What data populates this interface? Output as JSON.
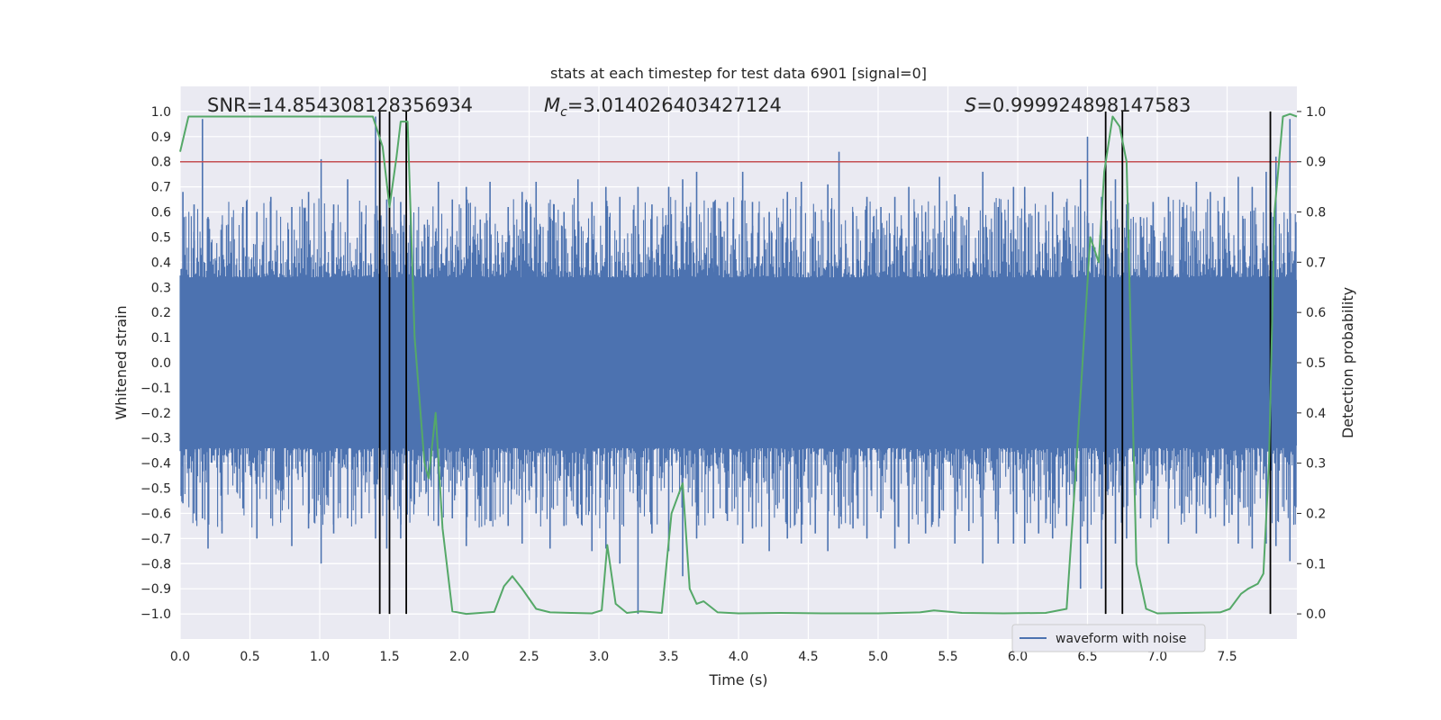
{
  "chart_data": {
    "type": "line",
    "title": "stats at each timestep for test data 6901 [signal=0]",
    "xlabel": "Time (s)",
    "ylabel": "Whitened strain",
    "y2label": "Detection probability",
    "xlim": [
      0.0,
      8.0
    ],
    "ylim": [
      -1.1,
      1.1
    ],
    "y2lim": [
      -0.05,
      1.05
    ],
    "xticks": [
      0.0,
      0.5,
      1.0,
      1.5,
      2.0,
      2.5,
      3.0,
      3.5,
      4.0,
      4.5,
      5.0,
      5.5,
      6.0,
      6.5,
      7.0,
      7.5
    ],
    "xtick_labels": [
      "0.0",
      "0.5",
      "1.0",
      "1.5",
      "2.0",
      "2.5",
      "3.0",
      "3.5",
      "4.0",
      "4.5",
      "5.0",
      "5.5",
      "6.0",
      "6.5",
      "7.0",
      "7.5"
    ],
    "yticks": [
      1.0,
      0.9,
      0.8,
      0.7,
      0.6,
      0.5,
      0.4,
      0.3,
      0.2,
      0.1,
      0.0,
      -0.1,
      -0.2,
      -0.3,
      -0.4,
      -0.5,
      -0.6,
      -0.7,
      -0.8,
      -0.9,
      -1.0
    ],
    "ytick_labels": [
      "1.0",
      "0.9",
      "0.8",
      "0.7",
      "0.6",
      "0.5",
      "0.4",
      "0.3",
      "0.2",
      "0.1",
      "0.0",
      "−0.1",
      "−0.2",
      "−0.3",
      "−0.4",
      "−0.5",
      "−0.6",
      "−0.7",
      "−0.8",
      "−0.9",
      "−1.0"
    ],
    "y2ticks": [
      1.0,
      0.9,
      0.8,
      0.7,
      0.6,
      0.5,
      0.4,
      0.3,
      0.2,
      0.1,
      0.0
    ],
    "y2tick_labels": [
      "1.0",
      "0.9",
      "0.8",
      "0.7",
      "0.6",
      "0.5",
      "0.4",
      "0.3",
      "0.2",
      "0.1",
      "0.0"
    ],
    "annotations": {
      "snr": "SNR=14.854308128356934",
      "mc_symbol": "M",
      "mc_sub": "c",
      "mc_value": "=3.014026403427124",
      "s_symbol": "S",
      "s_value": "=0.999924898147583"
    },
    "legend": {
      "label": "waveform with noise",
      "position": "lower-right"
    },
    "threshold": {
      "axis": "y2",
      "value": 0.9
    },
    "detection_markers_x": [
      1.43,
      1.5,
      1.62,
      6.63,
      6.75,
      7.81
    ],
    "waveform": {
      "name": "waveform with noise",
      "t_end": 8.0,
      "upper_envelope": 0.33,
      "lower_envelope": -0.33,
      "spikes": [
        [
          0.02,
          0.68,
          -0.56
        ],
        [
          0.1,
          0.63,
          -0.6
        ],
        [
          0.16,
          0.97,
          -0.62
        ],
        [
          0.2,
          0.58,
          -0.74
        ],
        [
          0.3,
          0.55,
          -0.68
        ],
        [
          0.45,
          0.62,
          -0.58
        ],
        [
          0.55,
          0.6,
          -0.7
        ],
        [
          0.65,
          0.66,
          -0.62
        ],
        [
          0.8,
          0.62,
          -0.73
        ],
        [
          0.92,
          0.68,
          -0.66
        ],
        [
          1.01,
          0.81,
          -0.8
        ],
        [
          1.1,
          0.63,
          -0.68
        ],
        [
          1.2,
          0.73,
          -0.62
        ],
        [
          1.3,
          0.6,
          -0.62
        ],
        [
          1.4,
          0.98,
          -0.7
        ],
        [
          1.48,
          0.65,
          -0.74
        ],
        [
          1.58,
          0.64,
          -0.7
        ],
        [
          1.65,
          0.6,
          -0.52
        ],
        [
          1.75,
          0.55,
          -0.47
        ],
        [
          1.85,
          0.72,
          -0.65
        ],
        [
          1.95,
          0.65,
          -0.62
        ],
        [
          2.05,
          0.7,
          -0.73
        ],
        [
          2.15,
          0.57,
          -0.57
        ],
        [
          2.22,
          0.72,
          -0.63
        ],
        [
          2.35,
          0.62,
          -0.65
        ],
        [
          2.45,
          0.68,
          -0.72
        ],
        [
          2.55,
          0.72,
          -0.6
        ],
        [
          2.65,
          0.58,
          -0.74
        ],
        [
          2.75,
          0.6,
          -0.65
        ],
        [
          2.85,
          0.73,
          -0.62
        ],
        [
          2.95,
          0.64,
          -0.75
        ],
        [
          3.05,
          0.7,
          -0.74
        ],
        [
          3.15,
          0.66,
          -0.8
        ],
        [
          3.28,
          0.7,
          -1.0
        ],
        [
          3.38,
          0.63,
          -0.68
        ],
        [
          3.5,
          0.7,
          -0.75
        ],
        [
          3.6,
          0.73,
          -0.85
        ],
        [
          3.7,
          0.76,
          -0.7
        ],
        [
          3.82,
          0.64,
          -0.62
        ],
        [
          3.92,
          0.64,
          -0.63
        ],
        [
          4.03,
          0.76,
          -0.72
        ],
        [
          4.1,
          0.64,
          -0.66
        ],
        [
          4.22,
          0.6,
          -0.75
        ],
        [
          4.35,
          0.68,
          -0.7
        ],
        [
          4.45,
          0.72,
          -0.72
        ],
        [
          4.55,
          0.6,
          -0.68
        ],
        [
          4.64,
          0.71,
          -0.75
        ],
        [
          4.72,
          0.84,
          -0.66
        ],
        [
          4.82,
          0.6,
          -0.66
        ],
        [
          4.92,
          0.66,
          -0.7
        ],
        [
          5.02,
          0.62,
          -0.62
        ],
        [
          5.12,
          0.66,
          -0.74
        ],
        [
          5.22,
          0.7,
          -0.72
        ],
        [
          5.34,
          0.6,
          -0.68
        ],
        [
          5.44,
          0.74,
          -0.62
        ],
        [
          5.55,
          0.67,
          -0.72
        ],
        [
          5.65,
          0.62,
          -0.67
        ],
        [
          5.75,
          0.76,
          -0.8
        ],
        [
          5.86,
          0.62,
          -0.72
        ],
        [
          5.97,
          0.7,
          -0.72
        ],
        [
          6.05,
          0.7,
          -0.72
        ],
        [
          6.15,
          0.6,
          -0.68
        ],
        [
          6.25,
          0.68,
          -0.7
        ],
        [
          6.35,
          0.64,
          -0.65
        ],
        [
          6.45,
          0.73,
          -0.9
        ],
        [
          6.5,
          0.9,
          -0.72
        ],
        [
          6.6,
          0.66,
          -0.9
        ],
        [
          6.7,
          0.73,
          -0.72
        ],
        [
          6.78,
          0.63,
          -0.7
        ],
        [
          6.88,
          0.58,
          -0.62
        ],
        [
          6.97,
          0.64,
          -0.62
        ],
        [
          7.08,
          0.66,
          -0.72
        ],
        [
          7.18,
          0.62,
          -0.6
        ],
        [
          7.28,
          0.72,
          -0.68
        ],
        [
          7.38,
          0.68,
          -0.62
        ],
        [
          7.48,
          0.66,
          -0.65
        ],
        [
          7.58,
          0.74,
          -0.72
        ],
        [
          7.68,
          0.7,
          -0.74
        ],
        [
          7.78,
          0.76,
          -0.72
        ],
        [
          7.85,
          0.82,
          -0.73
        ],
        [
          7.95,
          0.97,
          -0.79
        ]
      ]
    },
    "series": [
      {
        "name": "detection probability",
        "axis": "y2",
        "x": [
          0.0,
          0.06,
          0.3,
          0.6,
          0.9,
          1.2,
          1.38,
          1.45,
          1.5,
          1.55,
          1.58,
          1.63,
          1.68,
          1.75,
          1.78,
          1.83,
          1.88,
          1.95,
          2.05,
          2.15,
          2.25,
          2.32,
          2.38,
          2.45,
          2.55,
          2.65,
          2.8,
          2.95,
          3.02,
          3.06,
          3.12,
          3.2,
          3.3,
          3.45,
          3.52,
          3.6,
          3.65,
          3.7,
          3.75,
          3.85,
          4.0,
          4.3,
          4.6,
          5.0,
          5.3,
          5.4,
          5.6,
          5.9,
          6.2,
          6.35,
          6.42,
          6.52,
          6.58,
          6.62,
          6.68,
          6.73,
          6.78,
          6.85,
          6.92,
          7.0,
          7.2,
          7.45,
          7.52,
          7.6,
          7.65,
          7.72,
          7.76,
          7.8,
          7.84,
          7.9,
          7.95,
          8.0
        ],
        "y": [
          0.92,
          0.99,
          0.99,
          0.99,
          0.99,
          0.99,
          0.99,
          0.93,
          0.81,
          0.91,
          0.98,
          0.98,
          0.55,
          0.3,
          0.27,
          0.4,
          0.17,
          0.005,
          0.0,
          0.002,
          0.004,
          0.055,
          0.075,
          0.05,
          0.01,
          0.003,
          0.002,
          0.001,
          0.007,
          0.137,
          0.02,
          0.002,
          0.005,
          0.002,
          0.2,
          0.26,
          0.05,
          0.02,
          0.025,
          0.003,
          0.001,
          0.002,
          0.001,
          0.001,
          0.003,
          0.007,
          0.002,
          0.001,
          0.002,
          0.01,
          0.3,
          0.75,
          0.7,
          0.88,
          0.99,
          0.97,
          0.9,
          0.1,
          0.01,
          0.001,
          0.002,
          0.003,
          0.01,
          0.04,
          0.05,
          0.06,
          0.08,
          0.3,
          0.8,
          0.99,
          0.995,
          0.99
        ]
      }
    ],
    "colors": {
      "waveform": "#4c72b0",
      "probability": "#55a868",
      "threshold": "#c44e52",
      "markers": "#000000",
      "plot_bg": "#eaeaf2",
      "grid": "#ffffff"
    }
  }
}
